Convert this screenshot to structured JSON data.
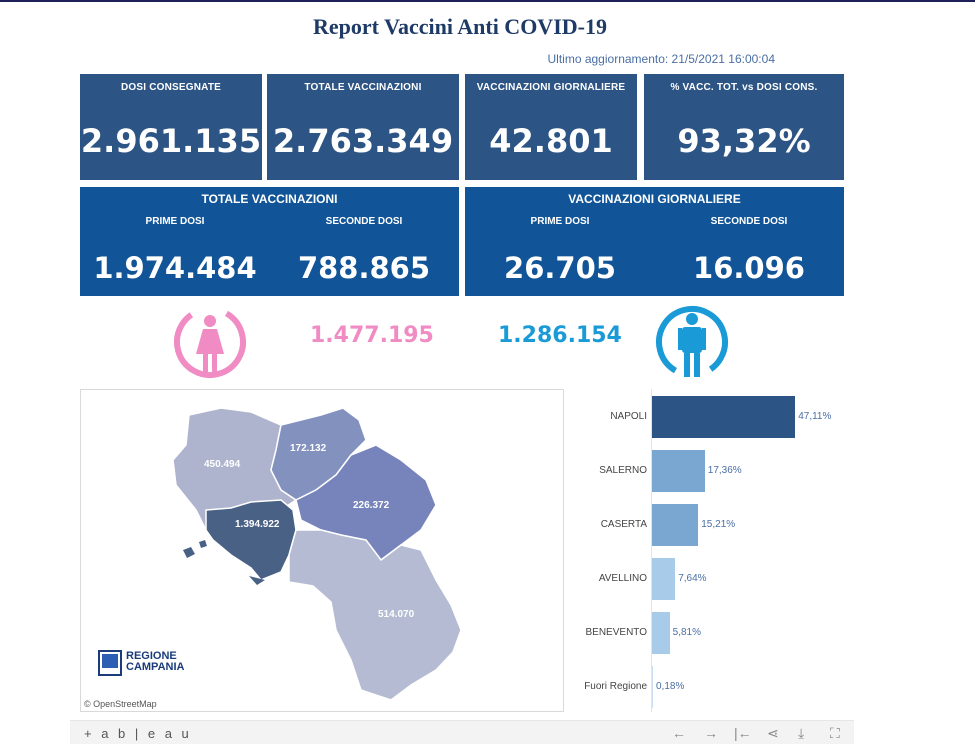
{
  "header": {
    "title": "Report Vaccini Anti COVID-19",
    "updated": "Ultimo aggiornamento: 21/5/2021  16:00:04"
  },
  "kpis": [
    {
      "label": "DOSI  CONSEGNATE",
      "value": "2.961.135"
    },
    {
      "label": "TOTALE VACCINAZIONI",
      "value": "2.763.349"
    },
    {
      "label": "VACCINAZIONI GIORNALIERE",
      "value": "42.801"
    },
    {
      "label": "% VACC. TOT. vs DOSI CONS.",
      "value": "93,32%"
    }
  ],
  "panels": [
    {
      "title": "TOTALE VACCINAZIONI",
      "first_label": "PRIME DOSI",
      "first_value": "1.974.484",
      "second_label": "SECONDE DOSI",
      "second_value": "788.865"
    },
    {
      "title": "VACCINAZIONI GIORNALIERE",
      "first_label": "PRIME DOSI",
      "first_value": "26.705",
      "second_label": "SECONDE DOSI",
      "second_value": "16.096"
    }
  ],
  "gender": {
    "female_value": "1.477.195",
    "male_value": "1.286.154",
    "female_color": "#f08bc4",
    "male_color": "#1a9ad6",
    "female_icon": "female-icon",
    "male_icon": "male-icon"
  },
  "map": {
    "regions": [
      {
        "name": "Caserta",
        "value": "450.494"
      },
      {
        "name": "Benevento",
        "value": "172.132"
      },
      {
        "name": "Avellino",
        "value": "226.372"
      },
      {
        "name": "Napoli",
        "value": "1.394.922"
      },
      {
        "name": "Salerno",
        "value": "514.070"
      }
    ],
    "logo_line1": "REGIONE",
    "logo_line2": "CAMPANIA",
    "credit": "© OpenStreetMap"
  },
  "chart_data": {
    "type": "bar",
    "orientation": "horizontal",
    "categories": [
      "NAPOLI",
      "SALERNO",
      "CASERTA",
      "AVELLINO",
      "BENEVENTO",
      "Fuori Regione"
    ],
    "values": [
      47.11,
      17.36,
      15.21,
      7.64,
      5.81,
      0.18
    ],
    "labels": [
      "47,11%",
      "17,36%",
      "15,21%",
      "7,64%",
      "5,81%",
      "0,18%"
    ],
    "colors": [
      "#2c5484",
      "#7aa7d1",
      "#7aa7d1",
      "#a7cbe8",
      "#a7cbe8",
      "#c9def0"
    ],
    "xlim": [
      0,
      50
    ]
  },
  "footer": {
    "brand": "+ a b | e a u",
    "icons": [
      "undo-icon",
      "redo-icon",
      "revert-icon",
      "share-icon",
      "download-icon",
      "fullscreen-icon"
    ],
    "glyphs": [
      "←",
      "→",
      "|←",
      "⋖",
      "⤓",
      "⛶"
    ]
  }
}
